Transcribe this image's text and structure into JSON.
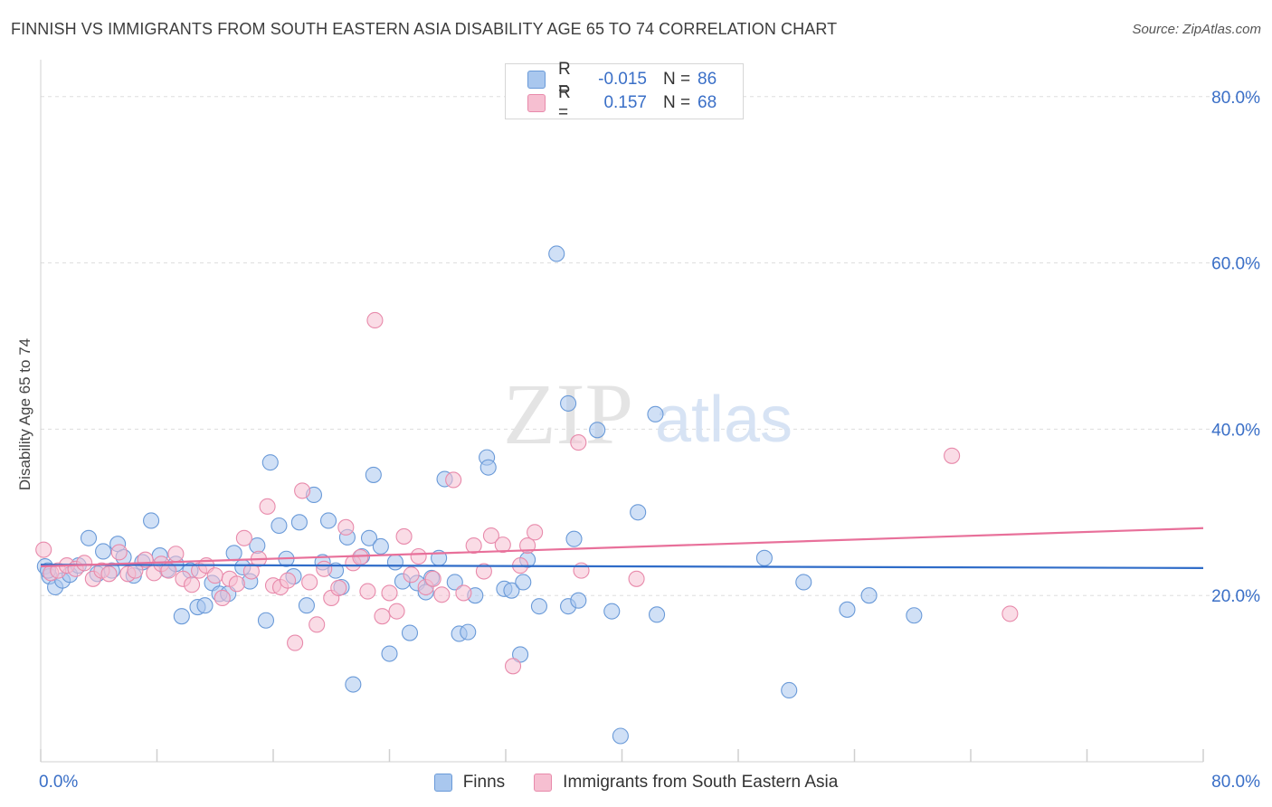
{
  "title": "FINNISH VS IMMIGRANTS FROM SOUTH EASTERN ASIA DISABILITY AGE 65 TO 74 CORRELATION CHART",
  "source": "Source: ZipAtlas.com",
  "watermark": {
    "zip": "ZIP",
    "atlas": "atlas"
  },
  "legend": {
    "rows": [
      {
        "r_label": "R =",
        "r_value": "-0.015",
        "n_label": "N =",
        "n_value": "86",
        "color": "#a9c7ee",
        "border": "#6a9ad8"
      },
      {
        "r_label": "R =",
        "r_value": "0.157",
        "n_label": "N =",
        "n_value": "68",
        "color": "#f6bfd1",
        "border": "#e88aab"
      }
    ]
  },
  "bottom_legend": [
    {
      "label": "Finns",
      "color": "#a9c7ee",
      "border": "#6a9ad8"
    },
    {
      "label": "Immigrants from South Eastern Asia",
      "color": "#f6bfd1",
      "border": "#e88aab"
    }
  ],
  "chart_data": {
    "type": "scatter",
    "title": "FINNISH VS IMMIGRANTS FROM SOUTH EASTERN ASIA DISABILITY AGE 65 TO 74 CORRELATION CHART",
    "xlabel": "",
    "ylabel": "Disability Age 65 to 74",
    "xlim": [
      0,
      80
    ],
    "ylim": [
      0,
      84
    ],
    "x_tick_labels": [
      "0.0%",
      "80.0%"
    ],
    "y_ticks": [
      20,
      40,
      60,
      80
    ],
    "y_tick_labels": [
      "20.0%",
      "40.0%",
      "60.0%",
      "80.0%"
    ],
    "grid": true,
    "series": [
      {
        "name": "Finns",
        "color": "#6a9ad8",
        "fill": "#a9c7ee",
        "trend": {
          "x": [
            0,
            80
          ],
          "y": [
            23.7,
            23.3
          ],
          "color": "#2f6cc8"
        },
        "points": [
          [
            0.3,
            23.5
          ],
          [
            0.6,
            22.3
          ],
          [
            1.0,
            21.0
          ],
          [
            1.5,
            21.8
          ],
          [
            2.0,
            22.5
          ],
          [
            2.6,
            23.6
          ],
          [
            3.3,
            26.9
          ],
          [
            3.9,
            22.6
          ],
          [
            4.3,
            25.3
          ],
          [
            4.9,
            23.0
          ],
          [
            5.3,
            26.2
          ],
          [
            5.7,
            24.6
          ],
          [
            6.4,
            22.4
          ],
          [
            7.0,
            24.0
          ],
          [
            7.6,
            29.0
          ],
          [
            8.2,
            24.8
          ],
          [
            8.7,
            23.1
          ],
          [
            9.3,
            23.8
          ],
          [
            9.7,
            17.5
          ],
          [
            10.3,
            23.0
          ],
          [
            10.8,
            18.6
          ],
          [
            11.3,
            18.8
          ],
          [
            11.8,
            21.5
          ],
          [
            12.3,
            20.2
          ],
          [
            12.9,
            20.2
          ],
          [
            13.3,
            25.1
          ],
          [
            13.9,
            23.4
          ],
          [
            14.4,
            21.7
          ],
          [
            14.9,
            26.0
          ],
          [
            15.5,
            17.0
          ],
          [
            15.8,
            36.0
          ],
          [
            16.4,
            28.4
          ],
          [
            16.9,
            24.4
          ],
          [
            17.4,
            22.3
          ],
          [
            17.8,
            28.8
          ],
          [
            18.3,
            18.8
          ],
          [
            18.8,
            32.1
          ],
          [
            19.4,
            24.0
          ],
          [
            19.8,
            29.0
          ],
          [
            20.3,
            23.0
          ],
          [
            20.7,
            21.0
          ],
          [
            21.1,
            27.0
          ],
          [
            21.5,
            9.3
          ],
          [
            22.1,
            24.7
          ],
          [
            22.6,
            26.9
          ],
          [
            22.9,
            34.5
          ],
          [
            23.4,
            25.9
          ],
          [
            24.0,
            13.0
          ],
          [
            24.4,
            24.0
          ],
          [
            24.9,
            21.7
          ],
          [
            25.4,
            15.5
          ],
          [
            25.9,
            21.5
          ],
          [
            26.5,
            20.4
          ],
          [
            26.9,
            22.1
          ],
          [
            27.4,
            24.5
          ],
          [
            27.8,
            34.0
          ],
          [
            28.5,
            21.6
          ],
          [
            28.8,
            15.4
          ],
          [
            29.4,
            15.6
          ],
          [
            29.9,
            20.0
          ],
          [
            30.7,
            36.6
          ],
          [
            30.8,
            35.4
          ],
          [
            31.9,
            20.8
          ],
          [
            32.4,
            20.6
          ],
          [
            33.0,
            12.9
          ],
          [
            33.2,
            21.6
          ],
          [
            33.5,
            24.3
          ],
          [
            34.3,
            18.7
          ],
          [
            35.5,
            61.1
          ],
          [
            36.3,
            43.1
          ],
          [
            36.3,
            18.7
          ],
          [
            37.0,
            19.4
          ],
          [
            36.7,
            26.8
          ],
          [
            38.3,
            39.9
          ],
          [
            39.3,
            18.1
          ],
          [
            39.9,
            3.1
          ],
          [
            41.1,
            30.0
          ],
          [
            42.3,
            41.8
          ],
          [
            42.4,
            17.7
          ],
          [
            49.8,
            24.5
          ],
          [
            51.5,
            8.6
          ],
          [
            52.5,
            21.6
          ],
          [
            55.5,
            18.3
          ],
          [
            57.0,
            20.0
          ],
          [
            60.1,
            17.6
          ],
          [
            0.5,
            23.0
          ]
        ]
      },
      {
        "name": "Immigrants from South Eastern Asia",
        "color": "#e88aab",
        "fill": "#f6bfd1",
        "trend": {
          "x": [
            0,
            80
          ],
          "y": [
            23.5,
            28.1
          ],
          "color": "#e8709a"
        },
        "points": [
          [
            0.2,
            25.5
          ],
          [
            0.7,
            22.7
          ],
          [
            1.2,
            23.0
          ],
          [
            1.8,
            23.6
          ],
          [
            2.4,
            23.2
          ],
          [
            3.0,
            23.9
          ],
          [
            3.6,
            22.0
          ],
          [
            4.2,
            23.0
          ],
          [
            4.7,
            22.6
          ],
          [
            5.4,
            25.2
          ],
          [
            6.0,
            22.6
          ],
          [
            6.5,
            23.0
          ],
          [
            7.2,
            24.3
          ],
          [
            7.8,
            22.7
          ],
          [
            8.3,
            23.8
          ],
          [
            8.8,
            23.0
          ],
          [
            9.3,
            25.0
          ],
          [
            9.8,
            22.0
          ],
          [
            10.4,
            21.3
          ],
          [
            10.9,
            23.0
          ],
          [
            11.4,
            23.6
          ],
          [
            12.0,
            22.4
          ],
          [
            12.5,
            19.7
          ],
          [
            13.0,
            22.0
          ],
          [
            13.5,
            21.4
          ],
          [
            14.0,
            26.9
          ],
          [
            14.5,
            22.9
          ],
          [
            15.0,
            24.4
          ],
          [
            15.6,
            30.7
          ],
          [
            16.0,
            21.2
          ],
          [
            16.5,
            21.0
          ],
          [
            17.0,
            21.8
          ],
          [
            17.5,
            14.3
          ],
          [
            18.0,
            32.6
          ],
          [
            18.5,
            21.6
          ],
          [
            19.0,
            16.5
          ],
          [
            19.5,
            23.2
          ],
          [
            20.0,
            19.7
          ],
          [
            20.5,
            20.9
          ],
          [
            21.0,
            28.2
          ],
          [
            21.5,
            23.9
          ],
          [
            22.0,
            24.6
          ],
          [
            22.5,
            20.5
          ],
          [
            23.0,
            53.1
          ],
          [
            23.5,
            17.5
          ],
          [
            24.0,
            20.3
          ],
          [
            24.5,
            18.1
          ],
          [
            25.0,
            27.1
          ],
          [
            25.5,
            22.5
          ],
          [
            26.0,
            24.7
          ],
          [
            26.5,
            21.0
          ],
          [
            27.0,
            22.0
          ],
          [
            27.6,
            20.1
          ],
          [
            28.4,
            33.9
          ],
          [
            29.1,
            20.3
          ],
          [
            29.8,
            26.0
          ],
          [
            30.5,
            22.9
          ],
          [
            31.0,
            27.2
          ],
          [
            31.8,
            26.1
          ],
          [
            32.5,
            11.5
          ],
          [
            33.0,
            23.6
          ],
          [
            33.5,
            26.0
          ],
          [
            34.0,
            27.6
          ],
          [
            37.0,
            38.4
          ],
          [
            37.2,
            23.0
          ],
          [
            41.0,
            22.0
          ],
          [
            62.7,
            36.8
          ],
          [
            66.7,
            17.8
          ]
        ]
      }
    ]
  }
}
